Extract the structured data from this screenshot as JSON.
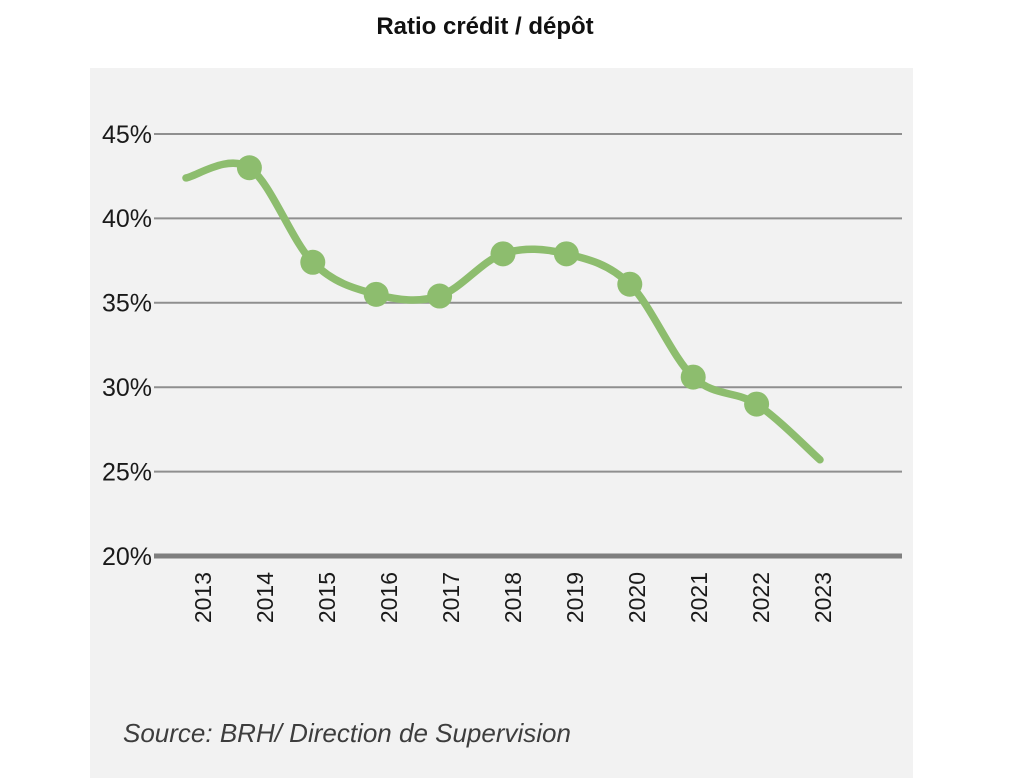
{
  "chart": {
    "title": "Ratio crédit / dépôt",
    "source": "Source: BRH/ Direction de Supervision",
    "colors": {
      "line": "#8dbd6e",
      "panel_background": "#f2f2f2",
      "page_background": "#ffffff",
      "gridline": "#8f8f8f",
      "axis_line": "#7f7f7f",
      "title_text": "#111111",
      "tick_text": "#1a1a1a",
      "source_text": "#3d3d3d"
    }
  },
  "chart_data": {
    "type": "line",
    "title": "Ratio crédit / dépôt",
    "x": [
      "2013",
      "2014",
      "2015",
      "2016",
      "2017",
      "2018",
      "2019",
      "2020",
      "2021",
      "2022",
      "2023"
    ],
    "series": [
      {
        "name": "Ratio crédit / dépôt",
        "values": [
          42.4,
          43.0,
          37.4,
          35.5,
          35.4,
          37.9,
          37.9,
          36.1,
          30.6,
          29.0,
          25.7
        ]
      }
    ],
    "ylim": [
      20,
      45
    ],
    "ytick_step": 5,
    "ytick_labels_top_to_bottom": [
      "45%",
      "40%",
      "35%",
      "30%",
      "25%",
      "20%"
    ],
    "grid": true,
    "legend": false,
    "line_style": "smooth",
    "markers_on": [
      "2014",
      "2015",
      "2016",
      "2017",
      "2018",
      "2019",
      "2020",
      "2021",
      "2022"
    ],
    "annotations": [
      "Source: BRH/ Direction de Supervision"
    ]
  }
}
